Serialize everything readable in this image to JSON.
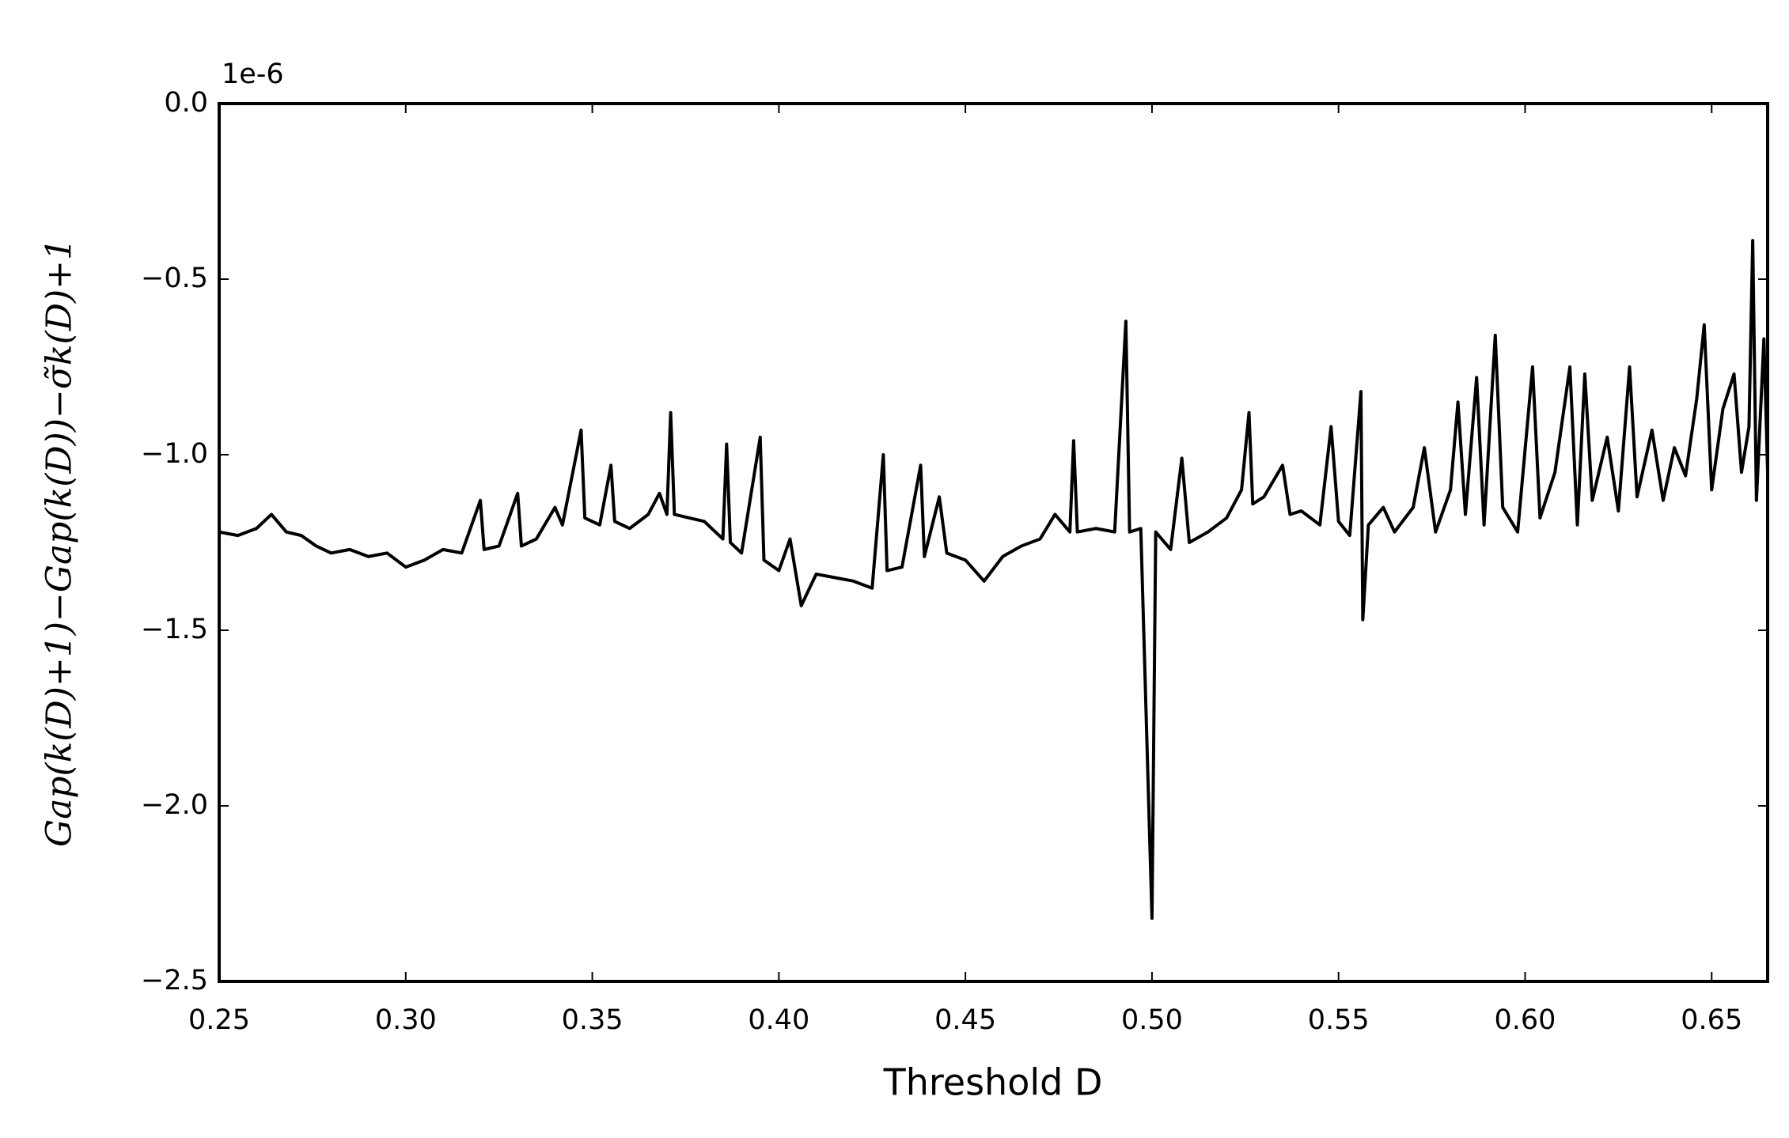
{
  "chart_data": {
    "type": "line",
    "x_label": "Threshold D",
    "y_label": "Gap(k(D)+1)−Gap(k(D))−σ̃k(D)+1",
    "y_offset_label": "1e-6",
    "xlim": [
      0.25,
      0.665
    ],
    "ylim": [
      -2.5,
      0
    ],
    "xticks": [
      {
        "value": 0.25,
        "label": "0.25"
      },
      {
        "value": 0.3,
        "label": "0.30"
      },
      {
        "value": 0.35,
        "label": "0.35"
      },
      {
        "value": 0.4,
        "label": "0.40"
      },
      {
        "value": 0.45,
        "label": "0.45"
      },
      {
        "value": 0.5,
        "label": "0.50"
      },
      {
        "value": 0.55,
        "label": "0.55"
      },
      {
        "value": 0.6,
        "label": "0.60"
      },
      {
        "value": 0.65,
        "label": "0.65"
      }
    ],
    "yticks": [
      {
        "value": -2.5,
        "label": "−2.5"
      },
      {
        "value": -2,
        "label": "−2.0"
      },
      {
        "value": -1.5,
        "label": "−1.5"
      },
      {
        "value": -1,
        "label": "−1.0"
      },
      {
        "value": -0.5,
        "label": "−0.5"
      },
      {
        "value": 0,
        "label": "0.0"
      }
    ],
    "grid": false,
    "x": [
      0.25,
      0.255,
      0.26,
      0.264,
      0.268,
      0.272,
      0.276,
      0.28,
      0.285,
      0.29,
      0.295,
      0.3,
      0.305,
      0.31,
      0.315,
      0.32,
      0.321,
      0.325,
      0.33,
      0.331,
      0.335,
      0.34,
      0.342,
      0.347,
      0.348,
      0.352,
      0.355,
      0.356,
      0.36,
      0.365,
      0.368,
      0.37,
      0.371,
      0.372,
      0.376,
      0.38,
      0.385,
      0.386,
      0.387,
      0.39,
      0.395,
      0.396,
      0.4,
      0.403,
      0.406,
      0.41,
      0.415,
      0.42,
      0.425,
      0.428,
      0.429,
      0.433,
      0.438,
      0.439,
      0.443,
      0.445,
      0.45,
      0.455,
      0.46,
      0.465,
      0.47,
      0.474,
      0.478,
      0.479,
      0.48,
      0.485,
      0.49,
      0.493,
      0.494,
      0.497,
      0.5,
      0.501,
      0.505,
      0.508,
      0.51,
      0.515,
      0.52,
      0.524,
      0.526,
      0.527,
      0.53,
      0.535,
      0.537,
      0.54,
      0.545,
      0.548,
      0.55,
      0.553,
      0.556,
      0.5565,
      0.558,
      0.562,
      0.565,
      0.57,
      0.573,
      0.576,
      0.58,
      0.582,
      0.584,
      0.587,
      0.589,
      0.592,
      0.594,
      0.598,
      0.602,
      0.604,
      0.608,
      0.612,
      0.614,
      0.616,
      0.618,
      0.622,
      0.625,
      0.628,
      0.63,
      0.634,
      0.637,
      0.64,
      0.643,
      0.646,
      0.648,
      0.65,
      0.653,
      0.656,
      0.658,
      0.66,
      0.661,
      0.662,
      0.664,
      0.665
    ],
    "series": [
      {
        "name": null,
        "color": "#000000",
        "values": [
          -1.22,
          -1.23,
          -1.21,
          -1.17,
          -1.22,
          -1.23,
          -1.26,
          -1.28,
          -1.27,
          -1.29,
          -1.28,
          -1.32,
          -1.3,
          -1.27,
          -1.28,
          -1.13,
          -1.27,
          -1.26,
          -1.11,
          -1.26,
          -1.24,
          -1.15,
          -1.2,
          -0.93,
          -1.18,
          -1.2,
          -1.03,
          -1.19,
          -1.21,
          -1.17,
          -1.11,
          -1.17,
          -0.88,
          -1.17,
          -1.18,
          -1.19,
          -1.24,
          -0.97,
          -1.25,
          -1.28,
          -0.95,
          -1.3,
          -1.33,
          -1.24,
          -1.43,
          -1.34,
          -1.35,
          -1.36,
          -1.38,
          -1.0,
          -1.33,
          -1.32,
          -1.03,
          -1.29,
          -1.12,
          -1.28,
          -1.3,
          -1.36,
          -1.29,
          -1.26,
          -1.24,
          -1.17,
          -1.22,
          -0.96,
          -1.22,
          -1.21,
          -1.22,
          -0.62,
          -1.22,
          -1.21,
          -2.32,
          -1.22,
          -1.27,
          -1.01,
          -1.25,
          -1.22,
          -1.18,
          -1.1,
          -0.88,
          -1.14,
          -1.12,
          -1.03,
          -1.17,
          -1.16,
          -1.2,
          -0.92,
          -1.19,
          -1.23,
          -0.82,
          -1.47,
          -1.2,
          -1.15,
          -1.22,
          -1.15,
          -0.98,
          -1.22,
          -1.1,
          -0.85,
          -1.17,
          -0.78,
          -1.2,
          -0.66,
          -1.15,
          -1.22,
          -0.75,
          -1.18,
          -1.05,
          -0.75,
          -1.2,
          -0.77,
          -1.13,
          -0.95,
          -1.16,
          -0.75,
          -1.12,
          -0.93,
          -1.13,
          -0.98,
          -1.06,
          -0.84,
          -0.63,
          -1.1,
          -0.87,
          -0.77,
          -1.05,
          -0.92,
          -0.39,
          -1.13,
          -0.67,
          -1.05
        ]
      }
    ]
  }
}
